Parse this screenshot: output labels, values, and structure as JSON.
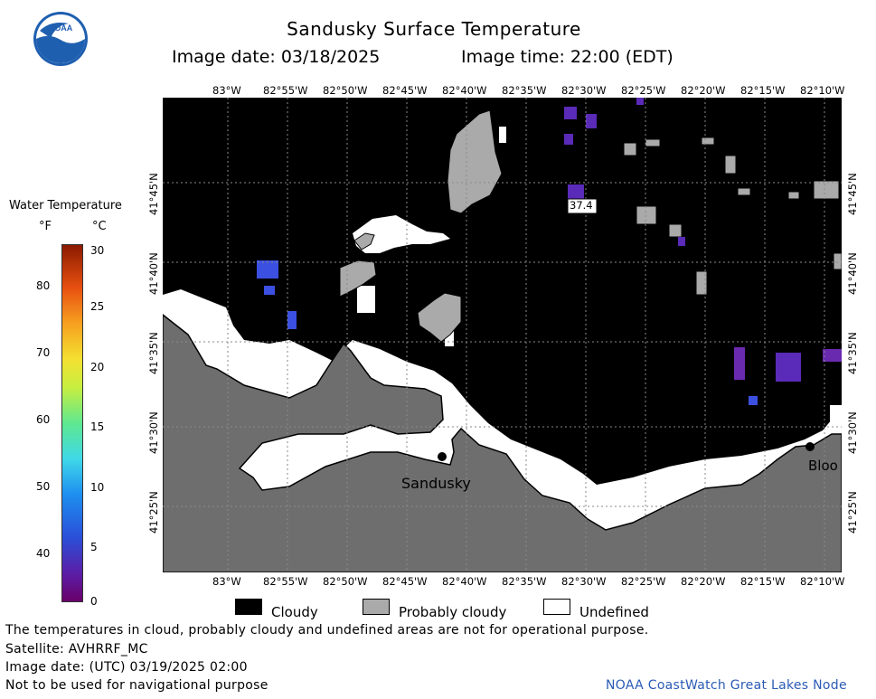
{
  "header": {
    "title": "Sandusky Surface Temperature",
    "image_date": "Image date: 03/18/2025",
    "image_time": "Image time: 22:00 (EDT)"
  },
  "logo": {
    "text": "NOAA",
    "icon": "noaa-logo-icon"
  },
  "colorbar": {
    "title": "Water Temperature",
    "unit_f": "°F",
    "unit_c": "°C",
    "f_ticks": [
      "80",
      "70",
      "60",
      "50",
      "40"
    ],
    "c_ticks": [
      "30",
      "25",
      "20",
      "15",
      "10",
      "5",
      "0"
    ]
  },
  "map": {
    "lon_labels": [
      "83°W",
      "82°55'W",
      "82°50'W",
      "82°45'W",
      "82°40'W",
      "82°35'W",
      "82°30'W",
      "82°25'W",
      "82°20'W",
      "82°15'W",
      "82°10'W"
    ],
    "lat_labels": [
      "41°45'N",
      "41°40'N",
      "41°35'N",
      "41°30'N",
      "41°25'N"
    ],
    "city_sandusky": "Sandusky",
    "city_bloomville": "Bloo",
    "temp_label": "37.4"
  },
  "legend": {
    "cloudy": "Cloudy",
    "probably_cloudy": "Probably cloudy",
    "undefined": "Undefined"
  },
  "colors": {
    "cloudy": "#000000",
    "probably_cloudy": "#aaaaaa",
    "undefined": "#ffffff",
    "land": "#6e6e6e",
    "footer_link": "#2a5bb5"
  },
  "footer": {
    "disclaimer": "The temperatures in cloud, probably cloudy and undefined areas are not for operational purpose.",
    "satellite": "Satellite: AVHRRF_MC",
    "utc_date": "Image date: (UTC) 03/19/2025  02:00",
    "nav_warning": "Not to be used for navigational purpose",
    "credit": "NOAA CoastWatch Great Lakes Node"
  }
}
